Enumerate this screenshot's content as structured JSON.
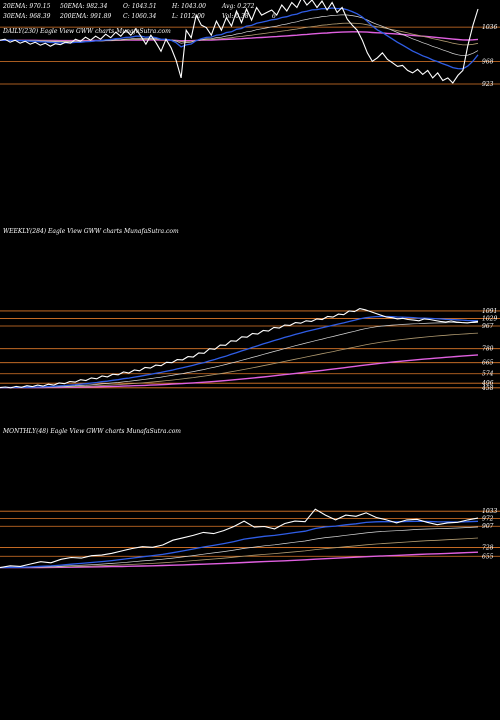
{
  "header": {
    "row1": [
      "20EMA: 970.15",
      "50EMA: 982.34",
      "O: 1043.51",
      "H: 1043.00",
      "Avg: 0.272"
    ],
    "row2": [
      "30EMA: 968.39",
      "200EMA: 991.89",
      "C: 1060.34",
      "L: 1012.00",
      "Vol: 0.38"
    ],
    "extra": "6"
  },
  "colors": {
    "background": "#000000",
    "price": "#ffffff",
    "ema_blue": "#2f5de6",
    "ema_magenta": "#e060e0",
    "ema_white": "#d9d9d9",
    "ema_tan": "#b09a70",
    "level_line": "#e07a2a"
  },
  "chart_data": [
    {
      "type": "line",
      "title": "DAILY(230) Eagle  View  GWW  charts MunafaSutra.com",
      "levels": [
        "1036",
        "968",
        "923"
      ],
      "series": [
        {
          "values": [
            1010,
            1012,
            1006,
            1010,
            1004,
            1008,
            1002,
            1006,
            1000,
            1004,
            998,
            1003,
            1001,
            1006,
            1004,
            1012,
            1008,
            1016,
            1010,
            1018,
            1012,
            1022,
            1015,
            1026,
            1018,
            1030,
            1020,
            1032,
            1018,
            1002,
            1020,
            1005,
            988,
            1012,
            995,
            970,
            935,
            1030,
            1015,
            1060,
            1040,
            1035,
            1020,
            1048,
            1030,
            1055,
            1038,
            1068,
            1045,
            1072,
            1050,
            1075,
            1060,
            1065,
            1070,
            1060,
            1080,
            1068,
            1085,
            1075,
            1095,
            1080,
            1090,
            1075,
            1088,
            1070,
            1085,
            1065,
            1075,
            1052,
            1040,
            1030,
            1010,
            985,
            968,
            975,
            985,
            972,
            965,
            958,
            960,
            950,
            945,
            952,
            942,
            950,
            935,
            945,
            930,
            935,
            925,
            940,
            950,
            1000,
            1040,
            1072
          ]
        }
      ]
    },
    {
      "type": "line",
      "title": "WEEKLY(284) Eagle  View  GWW  charts MunafaSutra.com",
      "levels": [
        "1091",
        "1029",
        "967",
        "780",
        "665",
        "574",
        "496",
        "458"
      ],
      "series": [
        {
          "values": [
            460,
            465,
            458,
            470,
            462,
            475,
            468,
            480,
            472,
            488,
            480,
            498,
            492,
            510,
            505,
            525,
            518,
            540,
            532,
            555,
            548,
            570,
            565,
            588,
            580,
            605,
            598,
            625,
            620,
            645,
            640,
            668,
            665,
            690,
            688,
            715,
            712,
            745,
            742,
            780,
            775,
            810,
            808,
            845,
            842,
            878,
            875,
            905,
            900,
            930,
            925,
            955,
            950,
            975,
            972,
            995,
            990,
            1010,
            1005,
            1025,
            1020,
            1045,
            1040,
            1065,
            1060,
            1090,
            1085,
            1110,
            1100,
            1085,
            1070,
            1055,
            1040,
            1035,
            1025,
            1030,
            1020,
            1015,
            1010,
            1025,
            1020,
            1012,
            1005,
            1000,
            1008,
            1000,
            995,
            992,
            998,
            1005
          ]
        }
      ]
    },
    {
      "type": "line",
      "title": "MONTHLY(48) Eagle  View  GWW  charts MunafaSutra.com",
      "levels": [
        "1033",
        "972",
        "907",
        "728",
        "655"
      ],
      "series": [
        {
          "values": [
            560,
            575,
            570,
            590,
            610,
            600,
            630,
            645,
            640,
            660,
            665,
            680,
            700,
            720,
            735,
            730,
            750,
            790,
            810,
            830,
            855,
            845,
            870,
            905,
            950,
            900,
            905,
            885,
            930,
            950,
            945,
            1050,
            1000,
            960,
            1000,
            990,
            1020,
            980,
            960,
            935,
            960,
            965,
            940,
            920,
            935,
            940,
            960,
            975
          ]
        }
      ]
    }
  ]
}
